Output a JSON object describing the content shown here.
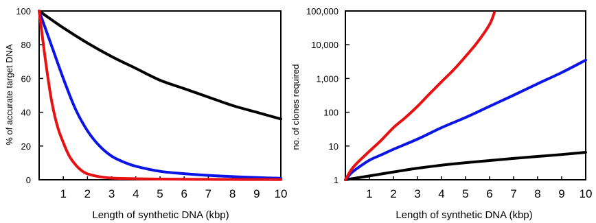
{
  "chart_data": [
    {
      "type": "line",
      "title": "",
      "xlabel": "Length of synthetic DNA (kbp)",
      "ylabel": "% of accurate target DNA",
      "xlim": [
        0,
        10
      ],
      "ylim": [
        0,
        100
      ],
      "yscale": "linear",
      "x_ticks": [
        "1",
        "2",
        "3",
        "4",
        "5",
        "6",
        "7",
        "8",
        "9",
        "10"
      ],
      "y_ticks": [
        "0",
        "20",
        "40",
        "60",
        "80",
        "100"
      ],
      "grid": false,
      "legend": "none",
      "series": [
        {
          "color": "#000000",
          "x": [
            0,
            1,
            2,
            3,
            4,
            5,
            6,
            7,
            8,
            9,
            10
          ],
          "y": [
            100,
            90,
            81,
            73,
            66,
            59,
            54,
            49,
            44,
            40,
            36
          ]
        },
        {
          "color": "#0a14e6",
          "x": [
            0,
            0.5,
            1,
            1.5,
            2,
            2.5,
            3,
            3.5,
            4,
            5,
            6,
            7,
            8,
            9,
            10
          ],
          "y": [
            100,
            80,
            60,
            42,
            29,
            20,
            14,
            10.5,
            8,
            5,
            3.6,
            2.6,
            1.9,
            1.3,
            0.9
          ]
        },
        {
          "color": "#e81010",
          "x": [
            0,
            0.25,
            0.5,
            0.75,
            1,
            1.25,
            1.5,
            1.75,
            2,
            2.5,
            3,
            4,
            5,
            6,
            7,
            8,
            9,
            10
          ],
          "y": [
            100,
            72,
            48,
            32,
            22,
            14,
            9,
            5.5,
            3.5,
            1.8,
            1,
            0.6,
            0.4,
            0.3,
            0.25,
            0.2,
            0.15,
            0.1
          ]
        }
      ]
    },
    {
      "type": "line",
      "title": "",
      "xlabel": "Length of synthetic DNA (kbp)",
      "ylabel": "no. of clones required",
      "xlim": [
        0,
        10
      ],
      "ylim": [
        1,
        100000
      ],
      "yscale": "log",
      "x_ticks": [
        "1",
        "2",
        "3",
        "4",
        "5",
        "6",
        "7",
        "8",
        "9",
        "10"
      ],
      "y_ticks": [
        "1",
        "10",
        "100",
        "1,000",
        "10,000",
        "100,000"
      ],
      "grid": false,
      "legend": "none",
      "series": [
        {
          "color": "#000000",
          "x": [
            0,
            1,
            2,
            3,
            4,
            5,
            6,
            7,
            8,
            9,
            10
          ],
          "y": [
            1,
            1.3,
            1.7,
            2.2,
            2.7,
            3.2,
            3.7,
            4.3,
            4.9,
            5.6,
            6.5
          ]
        },
        {
          "color": "#0a14e6",
          "x": [
            0,
            0.25,
            0.5,
            1,
            1.5,
            2,
            3,
            4,
            5,
            6,
            7,
            8,
            9,
            10
          ],
          "y": [
            1,
            1.6,
            2.2,
            3.8,
            5.5,
            8,
            16,
            35,
            70,
            150,
            320,
            700,
            1500,
            3500
          ]
        },
        {
          "color": "#e81010",
          "x": [
            0,
            0.25,
            0.5,
            1,
            1.5,
            2,
            2.5,
            3,
            3.5,
            4,
            4.5,
            5,
            5.5,
            6,
            6.2
          ],
          "y": [
            1,
            2,
            3.2,
            7,
            15,
            35,
            70,
            150,
            350,
            800,
            1800,
            4500,
            12000,
            40000,
            90000
          ]
        }
      ]
    }
  ]
}
